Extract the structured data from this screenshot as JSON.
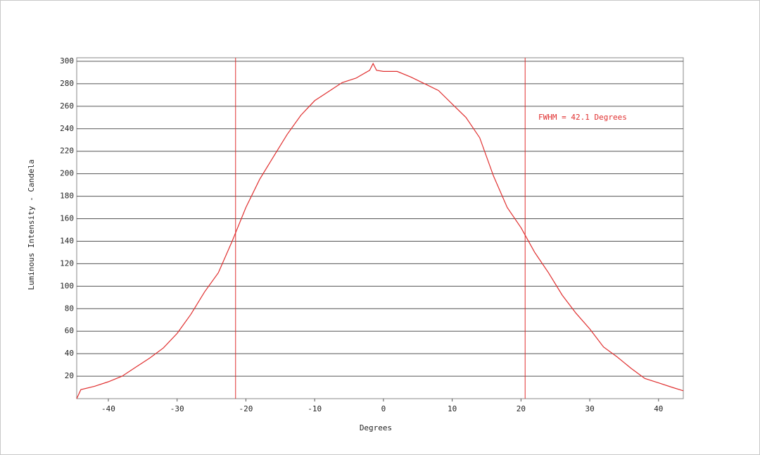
{
  "chart_data": {
    "type": "line",
    "x_label": "Degrees",
    "y_label": "Luminous Intensity - Candela",
    "annotation": "FWHM = 42.1 Degrees",
    "x": [
      -44.6,
      -44,
      -42,
      -40,
      -38,
      -36,
      -34,
      -32,
      -30,
      -28,
      -26,
      -24,
      -22,
      -20,
      -18,
      -16,
      -14,
      -12,
      -10,
      -8,
      -6,
      -4,
      -2,
      -1.5,
      -1,
      0,
      2,
      4,
      6,
      8,
      10,
      12,
      14,
      16,
      18,
      20,
      22,
      24,
      26,
      28,
      30,
      32,
      34,
      36,
      38,
      40,
      42,
      43.6
    ],
    "values": [
      0,
      8,
      11,
      15,
      20,
      28,
      36,
      45,
      58,
      75,
      95,
      112,
      140,
      170,
      195,
      215,
      235,
      252,
      265,
      273,
      281,
      285,
      292,
      298,
      292,
      291,
      291,
      286,
      280,
      274,
      262,
      250,
      232,
      198,
      170,
      152,
      130,
      112,
      92,
      76,
      62,
      46,
      37,
      27,
      18,
      14,
      10,
      7
    ],
    "color": "#e03030",
    "fwhm_lines": [
      -21.5,
      20.6
    ],
    "xlim": [
      -44.6,
      43.6
    ],
    "ylim": [
      0,
      300
    ],
    "xticks": [
      -40,
      -30,
      -20,
      -10,
      0,
      10,
      20,
      30,
      40
    ],
    "yticks": [
      20,
      40,
      60,
      80,
      100,
      120,
      140,
      160,
      180,
      200,
      220,
      240,
      260,
      280,
      300
    ],
    "grid": true
  }
}
